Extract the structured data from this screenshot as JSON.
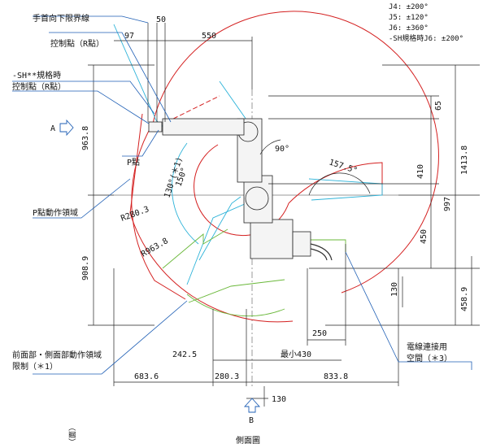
{
  "spec_lines": [
    "J4: ±200°",
    "J5: ±120°",
    "J6: ±360°",
    "-SH規格時J6: ±200°"
  ],
  "labels": {
    "wrist_limit": "手首向下限界線",
    "control_point": "控制點（R點）",
    "sh_control_point_1": "-SH**規格時",
    "sh_control_point_2": "控制點（R點）",
    "p_point": "P點",
    "p_motion_area": "P點動作領域",
    "front_limit_1": "前面部・側面部動作領域",
    "front_limit_2": "限制（＊1）",
    "cable_space_1": "電線連接用",
    "cable_space_2": "空間（＊3）",
    "view_a": "A",
    "view_b": "B",
    "side_view": "側面圖"
  },
  "dimensions": {
    "d50": "50",
    "d97": "97",
    "d550": "550",
    "d65": "65",
    "d963_8": "963.8",
    "d1413_8": "1413.8",
    "d410": "410",
    "d997": "997",
    "d450": "450",
    "d908_9": "908.9",
    "d130_v": "130",
    "d458_9": "458.9",
    "d250": "250",
    "d242_5": "242.5",
    "d_min430": "最小430",
    "d683_6": "683.6",
    "d280_3_h": "280.3",
    "d833_8": "833.8",
    "d130_h": "130",
    "r280_3": "R280.3",
    "r963_8": "R963.8",
    "a90": "90°",
    "a157_5": "157.5°",
    "a150": "150°",
    "a130": "130°(＊1)"
  },
  "colors": {
    "reach_envelope": "#d42020",
    "arm_sweep": "#2bb2d8",
    "front_limit": "#6ab83a",
    "leader": "#1f5fb5"
  }
}
